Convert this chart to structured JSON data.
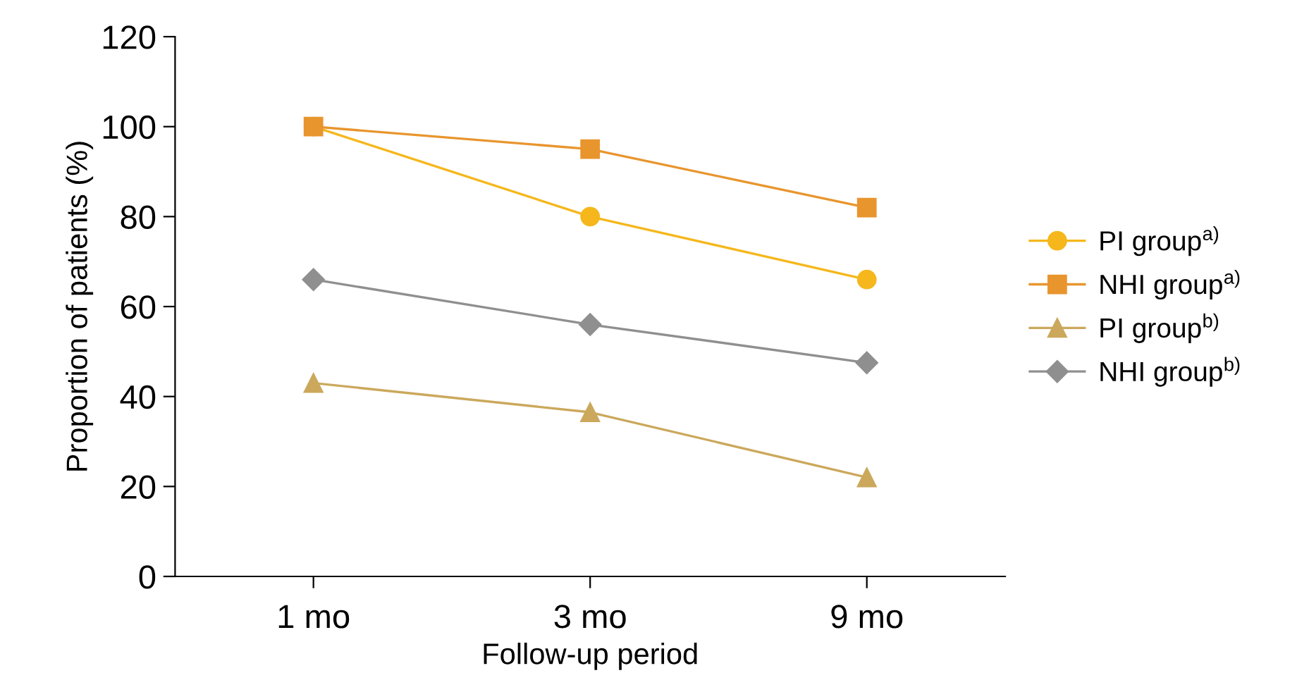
{
  "chart_data": {
    "type": "line",
    "xlabel": "Follow-up period",
    "ylabel": "Proportion of patients (%)",
    "categories": [
      "1 mo",
      "3 mo",
      "9 mo"
    ],
    "series": [
      {
        "name": "PI group$^{a)}$",
        "color": "#f5b71c",
        "marker": "circle",
        "values": [
          100,
          80,
          66
        ]
      },
      {
        "name": "NHI group$^{a)}$",
        "color": "#e8952e",
        "marker": "square",
        "values": [
          100,
          95,
          82
        ]
      },
      {
        "name": "PI group$^{b)}$",
        "color": "#cba85c",
        "marker": "triangle",
        "values": [
          43,
          36.5,
          22
        ]
      },
      {
        "name": "NHI group$^{b)}$",
        "color": "#8f8f8f",
        "marker": "diamond",
        "values": [
          66,
          56,
          47.5
        ]
      }
    ],
    "ylim": [
      0,
      120
    ],
    "yticks": [
      0,
      20,
      40,
      60,
      80,
      100,
      120
    ],
    "grid": false,
    "legend": "right",
    "line_style": "solid"
  }
}
